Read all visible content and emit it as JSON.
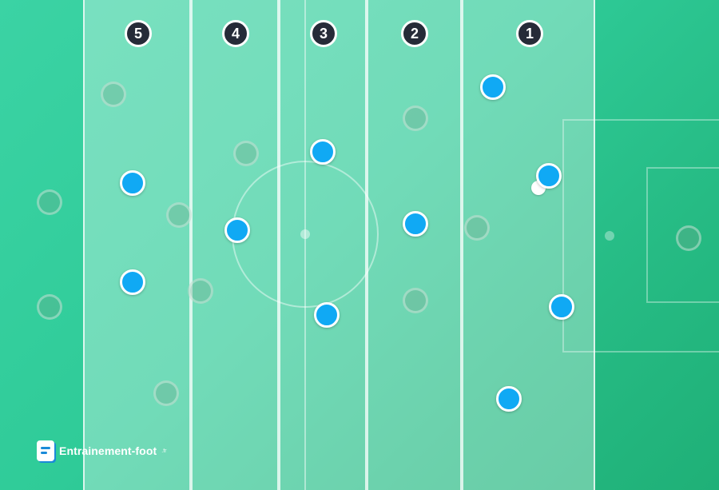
{
  "zones": [
    {
      "label": "5"
    },
    {
      "label": "4"
    },
    {
      "label": "3"
    },
    {
      "label": "2"
    },
    {
      "label": "1"
    }
  ],
  "players": {
    "team_color": "#10a9f4",
    "team_count": 11,
    "opponent_count": 11
  },
  "ball": {
    "color": "#ffffff"
  },
  "logo": {
    "text": "Entrainement-foot",
    "tld": ".fr"
  },
  "colors": {
    "pitch": "#2fcb98",
    "zone_overlay": "rgba(255,255,255,0.32)",
    "badge_bg": "#262b38",
    "team": "#10a9f4"
  }
}
